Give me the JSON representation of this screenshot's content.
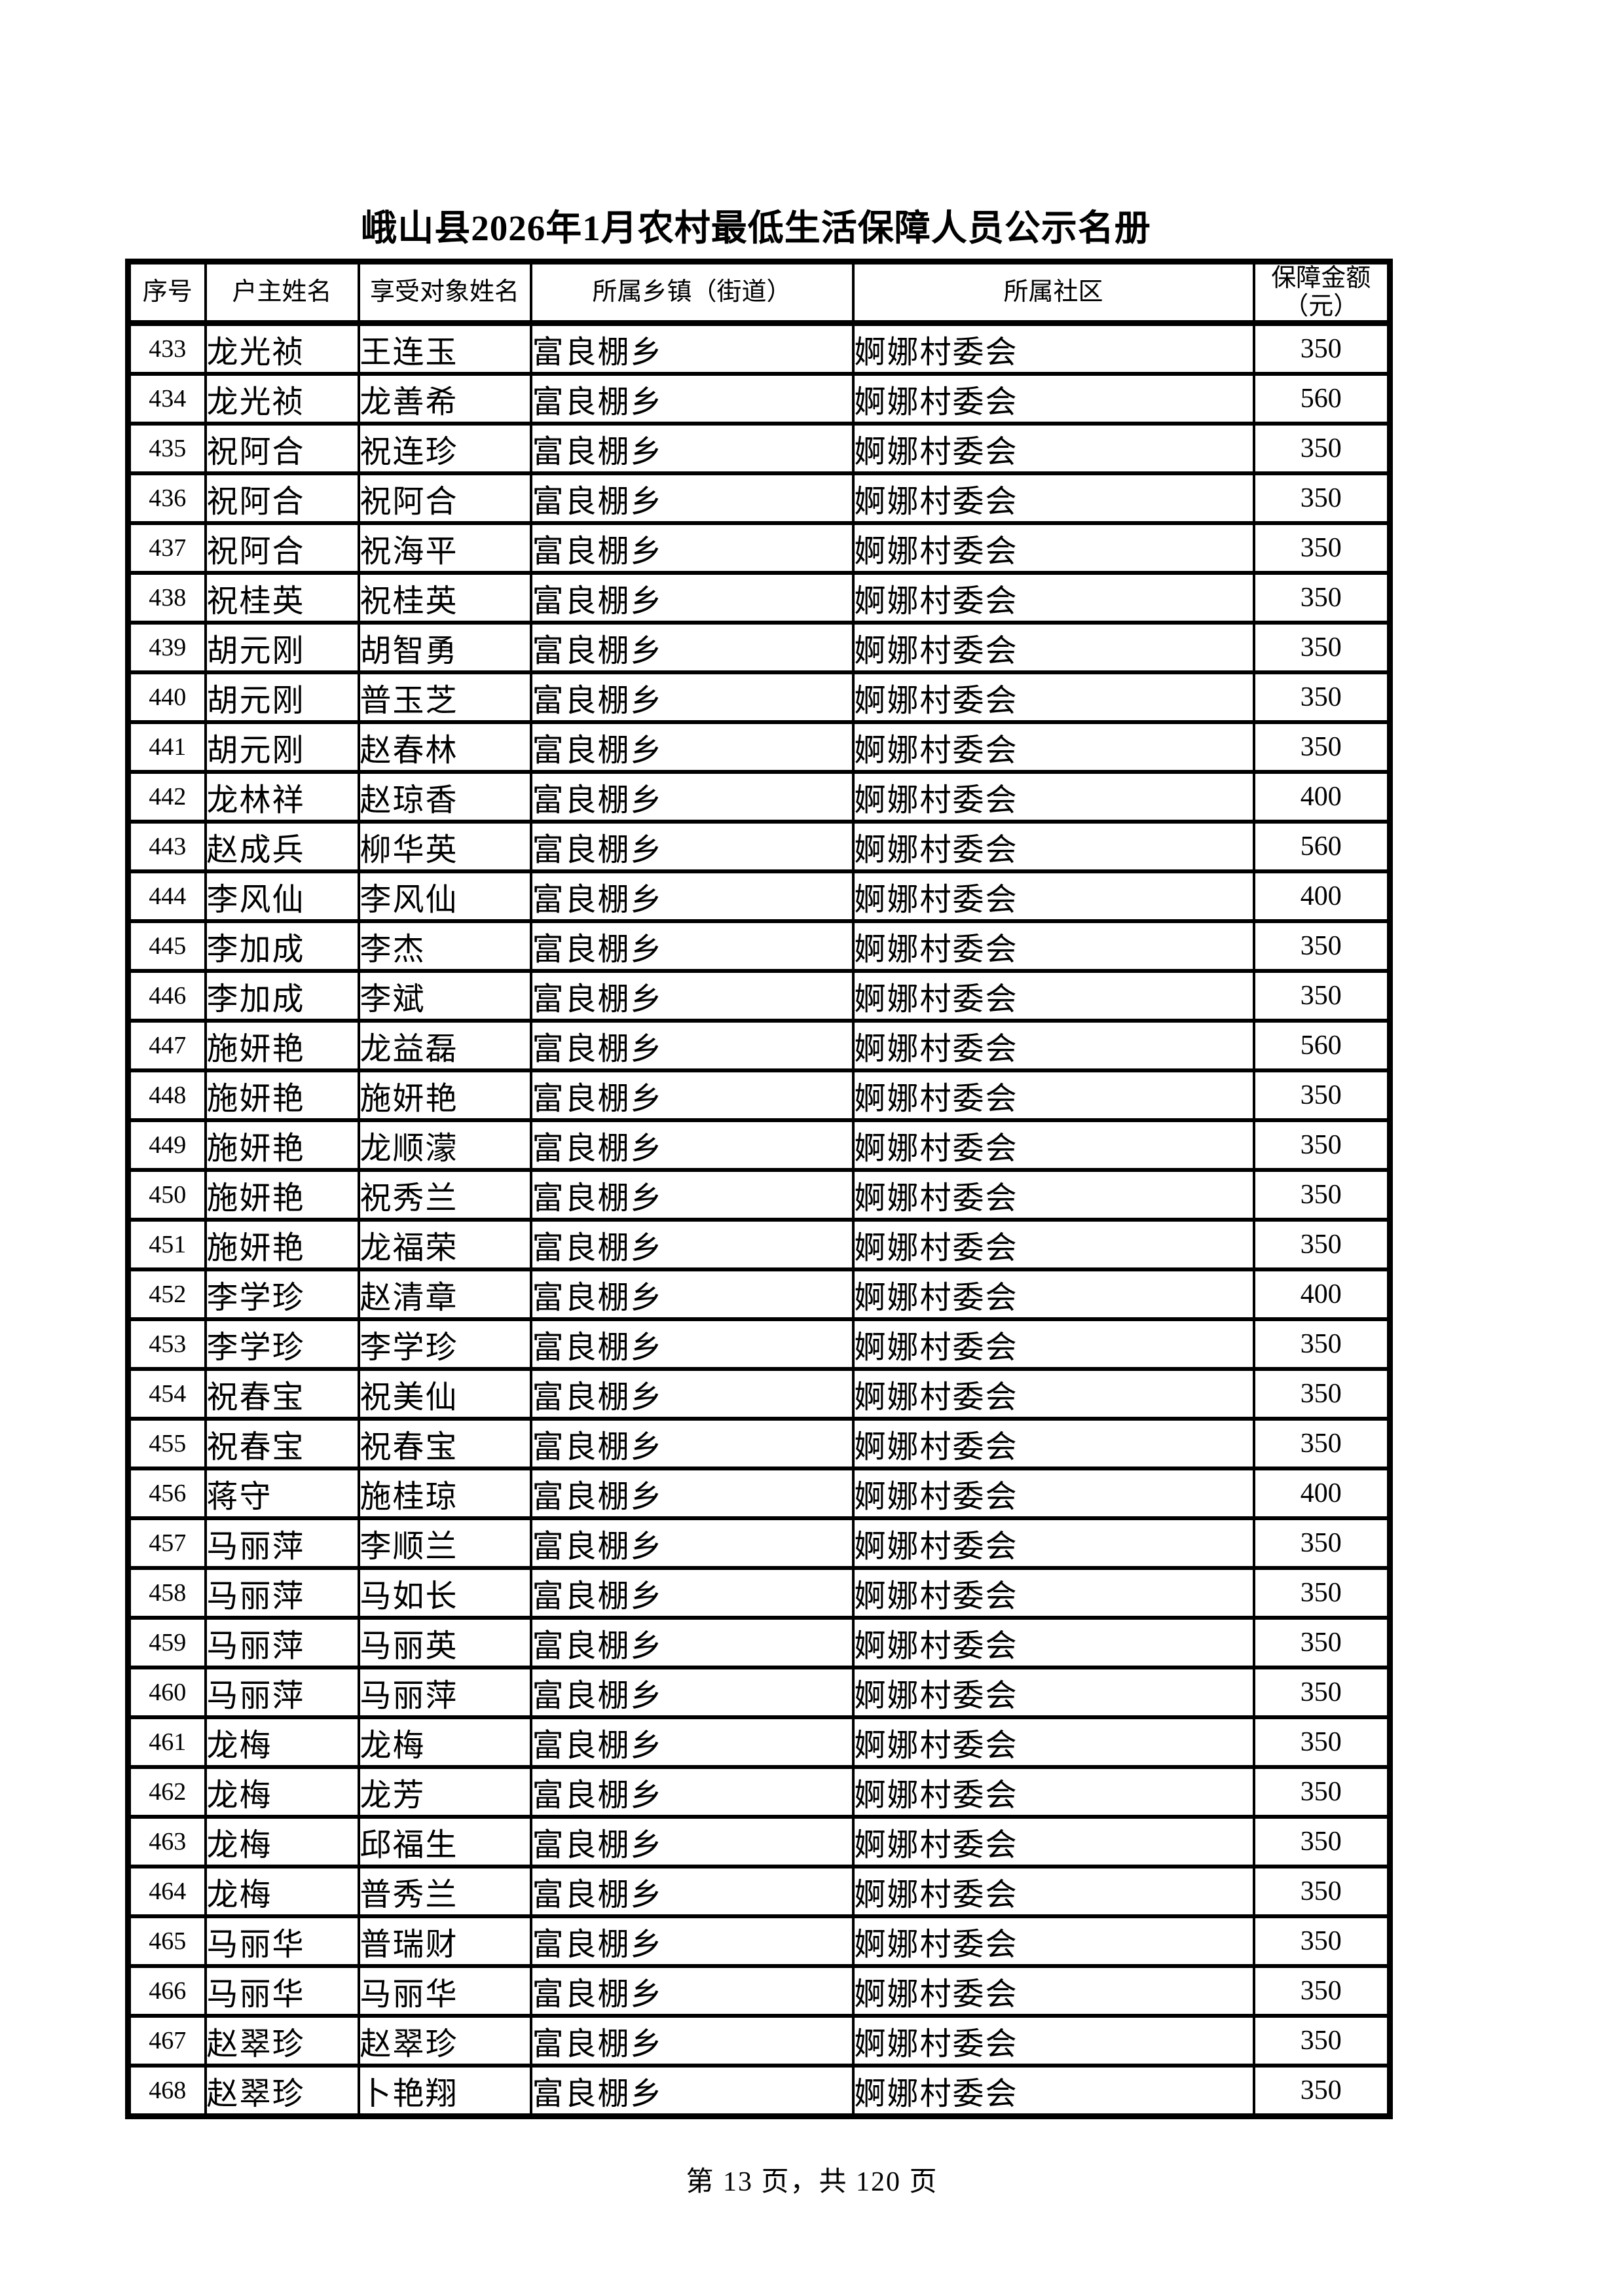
{
  "page": {
    "title": "峨山县2026年1月农村最低生活保障人员公示名册",
    "footer": "第 13 页，共 120 页"
  },
  "table": {
    "headers": [
      "序号",
      "户主姓名",
      "享受对象姓名",
      "所属乡镇（街道）",
      "所属社区",
      "保障金额\n（元）"
    ],
    "rows": [
      [
        433,
        "龙光祯",
        "王连玉",
        "富良棚乡",
        "婀娜村委会",
        350
      ],
      [
        434,
        "龙光祯",
        "龙善希",
        "富良棚乡",
        "婀娜村委会",
        560
      ],
      [
        435,
        "祝阿合",
        "祝连珍",
        "富良棚乡",
        "婀娜村委会",
        350
      ],
      [
        436,
        "祝阿合",
        "祝阿合",
        "富良棚乡",
        "婀娜村委会",
        350
      ],
      [
        437,
        "祝阿合",
        "祝海平",
        "富良棚乡",
        "婀娜村委会",
        350
      ],
      [
        438,
        "祝桂英",
        "祝桂英",
        "富良棚乡",
        "婀娜村委会",
        350
      ],
      [
        439,
        "胡元刚",
        "胡智勇",
        "富良棚乡",
        "婀娜村委会",
        350
      ],
      [
        440,
        "胡元刚",
        "普玉芝",
        "富良棚乡",
        "婀娜村委会",
        350
      ],
      [
        441,
        "胡元刚",
        "赵春林",
        "富良棚乡",
        "婀娜村委会",
        350
      ],
      [
        442,
        "龙林祥",
        "赵琼香",
        "富良棚乡",
        "婀娜村委会",
        400
      ],
      [
        443,
        "赵成兵",
        "柳华英",
        "富良棚乡",
        "婀娜村委会",
        560
      ],
      [
        444,
        "李风仙",
        "李风仙",
        "富良棚乡",
        "婀娜村委会",
        400
      ],
      [
        445,
        "李加成",
        "李杰",
        "富良棚乡",
        "婀娜村委会",
        350
      ],
      [
        446,
        "李加成",
        "李斌",
        "富良棚乡",
        "婀娜村委会",
        350
      ],
      [
        447,
        "施妍艳",
        "龙益磊",
        "富良棚乡",
        "婀娜村委会",
        560
      ],
      [
        448,
        "施妍艳",
        "施妍艳",
        "富良棚乡",
        "婀娜村委会",
        350
      ],
      [
        449,
        "施妍艳",
        "龙顺濛",
        "富良棚乡",
        "婀娜村委会",
        350
      ],
      [
        450,
        "施妍艳",
        "祝秀兰",
        "富良棚乡",
        "婀娜村委会",
        350
      ],
      [
        451,
        "施妍艳",
        "龙福荣",
        "富良棚乡",
        "婀娜村委会",
        350
      ],
      [
        452,
        "李学珍",
        "赵清章",
        "富良棚乡",
        "婀娜村委会",
        400
      ],
      [
        453,
        "李学珍",
        "李学珍",
        "富良棚乡",
        "婀娜村委会",
        350
      ],
      [
        454,
        "祝春宝",
        "祝美仙",
        "富良棚乡",
        "婀娜村委会",
        350
      ],
      [
        455,
        "祝春宝",
        "祝春宝",
        "富良棚乡",
        "婀娜村委会",
        350
      ],
      [
        456,
        "蒋守",
        "施桂琼",
        "富良棚乡",
        "婀娜村委会",
        400
      ],
      [
        457,
        "马丽萍",
        "李顺兰",
        "富良棚乡",
        "婀娜村委会",
        350
      ],
      [
        458,
        "马丽萍",
        "马如长",
        "富良棚乡",
        "婀娜村委会",
        350
      ],
      [
        459,
        "马丽萍",
        "马丽英",
        "富良棚乡",
        "婀娜村委会",
        350
      ],
      [
        460,
        "马丽萍",
        "马丽萍",
        "富良棚乡",
        "婀娜村委会",
        350
      ],
      [
        461,
        "龙梅",
        "龙梅",
        "富良棚乡",
        "婀娜村委会",
        350
      ],
      [
        462,
        "龙梅",
        "龙芳",
        "富良棚乡",
        "婀娜村委会",
        350
      ],
      [
        463,
        "龙梅",
        "邱福生",
        "富良棚乡",
        "婀娜村委会",
        350
      ],
      [
        464,
        "龙梅",
        "普秀兰",
        "富良棚乡",
        "婀娜村委会",
        350
      ],
      [
        465,
        "马丽华",
        "普瑞财",
        "富良棚乡",
        "婀娜村委会",
        350
      ],
      [
        466,
        "马丽华",
        "马丽华",
        "富良棚乡",
        "婀娜村委会",
        350
      ],
      [
        467,
        "赵翠珍",
        "赵翠珍",
        "富良棚乡",
        "婀娜村委会",
        350
      ],
      [
        468,
        "赵翠珍",
        "卜艳翔",
        "富良棚乡",
        "婀娜村委会",
        350
      ]
    ]
  }
}
